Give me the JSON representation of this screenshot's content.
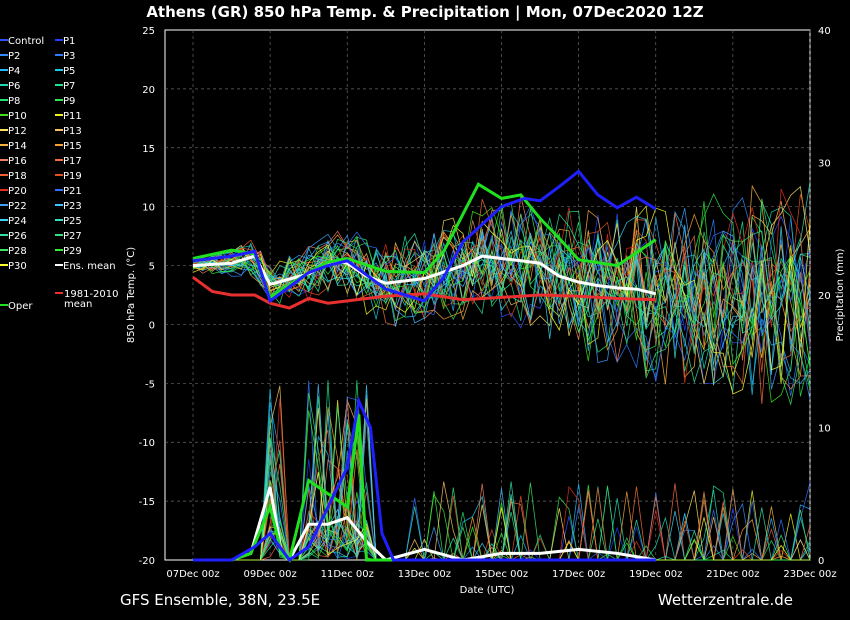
{
  "chart_data": {
    "type": "line",
    "title": "Athens  (GR)  850 hPa Temp. & Precipitation | Mon, 07Dec2020 12Z",
    "xlabel": "Date (UTC)",
    "ylabel": "850 hPa Temp. (°C)",
    "y2label": "Precipitation (mm)",
    "xlim": [
      0,
      16
    ],
    "ylim": [
      -20,
      25
    ],
    "y2lim": [
      0,
      40
    ],
    "x_ticks": [
      "07Dec 00z",
      "09Dec 00z",
      "11Dec 00z",
      "13Dec 00z",
      "15Dec 00z",
      "17Dec 00z",
      "19Dec 00z",
      "21Dec 00z",
      "23Dec 00z"
    ],
    "y_ticks": [
      -20,
      -15,
      -10,
      -5,
      0,
      5,
      10,
      15,
      20,
      25
    ],
    "y2_ticks": [
      0,
      10,
      20,
      30,
      40
    ],
    "grid": true,
    "legend": {
      "placement": "left",
      "entries": [
        {
          "name": "Control",
          "color": "#3050ff"
        },
        {
          "name": "P1",
          "color": "#2040ff"
        },
        {
          "name": "P2",
          "color": "#2f8cff"
        },
        {
          "name": "P3",
          "color": "#2f7cff"
        },
        {
          "name": "P4",
          "color": "#29b4ff"
        },
        {
          "name": "P5",
          "color": "#20c8e8"
        },
        {
          "name": "P6",
          "color": "#20d8b0"
        },
        {
          "name": "P7",
          "color": "#20e090"
        },
        {
          "name": "P8",
          "color": "#22e070"
        },
        {
          "name": "P9",
          "color": "#2ee650"
        },
        {
          "name": "P10",
          "color": "#40e020"
        },
        {
          "name": "P11",
          "color": "#f0f020"
        },
        {
          "name": "P12",
          "color": "#f8e060"
        },
        {
          "name": "P13",
          "color": "#f8c060"
        },
        {
          "name": "P14",
          "color": "#f8b040"
        },
        {
          "name": "P15",
          "color": "#f8a030"
        },
        {
          "name": "P16",
          "color": "#f08060"
        },
        {
          "name": "P17",
          "color": "#f07040"
        },
        {
          "name": "P18",
          "color": "#f06030"
        },
        {
          "name": "P19",
          "color": "#e05020"
        },
        {
          "name": "P20",
          "color": "#e03020"
        },
        {
          "name": "P21",
          "color": "#3070ff"
        },
        {
          "name": "P22",
          "color": "#40a0ff"
        },
        {
          "name": "P23",
          "color": "#40c0ff"
        },
        {
          "name": "P24",
          "color": "#40d0f0"
        },
        {
          "name": "P25",
          "color": "#30e0c0"
        },
        {
          "name": "P26",
          "color": "#30e0a0"
        },
        {
          "name": "P27",
          "color": "#30e080"
        },
        {
          "name": "P28",
          "color": "#40e060"
        },
        {
          "name": "P29",
          "color": "#30ee30"
        },
        {
          "name": "P30",
          "color": "#ffff30"
        },
        {
          "name": "Ens. mean",
          "color": "#ffffff"
        },
        {
          "name": "Oper",
          "color": "#20e020"
        },
        {
          "name": "1981-2010 mean",
          "color": "#e83030"
        }
      ]
    },
    "series": [
      {
        "name": "Ens. mean",
        "values": [
          [
            0,
            5.0
          ],
          [
            1,
            5.2
          ],
          [
            1.6,
            5.8
          ],
          [
            2,
            3.4
          ],
          [
            3,
            4.3
          ],
          [
            3.6,
            5.4
          ],
          [
            4,
            5.2
          ],
          [
            4.5,
            4.1
          ],
          [
            5,
            3.5
          ],
          [
            6,
            3.9
          ],
          [
            7,
            5.0
          ],
          [
            7.5,
            5.8
          ],
          [
            8,
            5.6
          ],
          [
            8.5,
            5.4
          ],
          [
            9,
            5.2
          ],
          [
            9.5,
            4.1
          ],
          [
            10,
            3.6
          ],
          [
            10.5,
            3.3
          ],
          [
            11,
            3.1
          ],
          [
            11.5,
            3.0
          ],
          [
            12,
            2.6
          ]
        ]
      },
      {
        "name": "1981-2010 mean",
        "values": [
          [
            0,
            4.0
          ],
          [
            0.5,
            2.8
          ],
          [
            1,
            2.5
          ],
          [
            1.6,
            2.5
          ],
          [
            2,
            1.8
          ],
          [
            2.5,
            1.4
          ],
          [
            3,
            2.2
          ],
          [
            3.5,
            1.8
          ],
          [
            4,
            2.0
          ],
          [
            5,
            2.4
          ],
          [
            6,
            2.6
          ],
          [
            7,
            2.1
          ],
          [
            8,
            2.3
          ],
          [
            9,
            2.5
          ],
          [
            10,
            2.4
          ],
          [
            11,
            2.2
          ],
          [
            12,
            2.1
          ]
        ]
      },
      {
        "name": "Oper",
        "values": [
          [
            0,
            5.6
          ],
          [
            1,
            6.3
          ],
          [
            1.6,
            6.0
          ],
          [
            2,
            2.3
          ],
          [
            3,
            4.4
          ],
          [
            3.5,
            5.3
          ],
          [
            4,
            5.6
          ],
          [
            5,
            4.5
          ],
          [
            6,
            4.4
          ],
          [
            6.5,
            6.2
          ],
          [
            7.4,
            11.9
          ],
          [
            8,
            10.7
          ],
          [
            8.5,
            11.0
          ],
          [
            9,
            9.0
          ],
          [
            9.5,
            7.3
          ],
          [
            10,
            5.5
          ],
          [
            11,
            5.0
          ],
          [
            12,
            7.2
          ]
        ]
      },
      {
        "name": "Control",
        "values": [
          [
            0,
            5.4
          ],
          [
            1,
            5.8
          ],
          [
            1.6,
            6.2
          ],
          [
            2,
            2.0
          ],
          [
            3,
            4.4
          ],
          [
            3.5,
            5.0
          ],
          [
            4,
            5.4
          ],
          [
            5,
            3.0
          ],
          [
            6,
            2.0
          ],
          [
            6.5,
            4.0
          ],
          [
            7,
            7.0
          ],
          [
            8,
            10.0
          ],
          [
            8.6,
            10.7
          ],
          [
            9,
            10.5
          ],
          [
            9.5,
            11.7
          ],
          [
            10,
            13.0
          ],
          [
            10.5,
            11.0
          ],
          [
            11,
            9.9
          ],
          [
            11.5,
            10.8
          ],
          [
            12,
            9.8
          ]
        ]
      }
    ],
    "precip_series": [
      {
        "name": "Ens. mean",
        "values": [
          [
            0,
            0
          ],
          [
            1,
            0
          ],
          [
            1.5,
            0.5
          ],
          [
            2,
            5.5
          ],
          [
            2.3,
            0.5
          ],
          [
            2.5,
            0
          ],
          [
            3,
            2.7
          ],
          [
            3.5,
            2.7
          ],
          [
            4,
            3.2
          ],
          [
            4.5,
            1.4
          ],
          [
            5,
            0
          ],
          [
            6,
            0.8
          ],
          [
            7,
            0
          ],
          [
            8,
            0.5
          ],
          [
            9,
            0.5
          ],
          [
            10,
            0.8
          ],
          [
            11,
            0.5
          ],
          [
            12,
            0
          ]
        ]
      },
      {
        "name": "Oper",
        "values": [
          [
            0,
            0
          ],
          [
            1,
            0
          ],
          [
            1.5,
            0.5
          ],
          [
            2,
            4.0
          ],
          [
            2.3,
            0.5
          ],
          [
            2.5,
            0
          ],
          [
            3,
            6.0
          ],
          [
            4,
            4.0
          ],
          [
            4.3,
            11.0
          ],
          [
            4.5,
            0
          ],
          [
            12,
            0
          ]
        ]
      },
      {
        "name": "Control",
        "values": [
          [
            0,
            0
          ],
          [
            1,
            0
          ],
          [
            1.6,
            1.0
          ],
          [
            2,
            2.0
          ],
          [
            2.5,
            0
          ],
          [
            3,
            1.0
          ],
          [
            4,
            7.0
          ],
          [
            4.3,
            12.0
          ],
          [
            4.6,
            10.0
          ],
          [
            4.9,
            2.0
          ],
          [
            5.2,
            0
          ],
          [
            12,
            0
          ]
        ]
      }
    ]
  },
  "footer": {
    "left": "GFS Ensemble, 38N, 23.5E",
    "right": "Wetterzentrale.de"
  }
}
